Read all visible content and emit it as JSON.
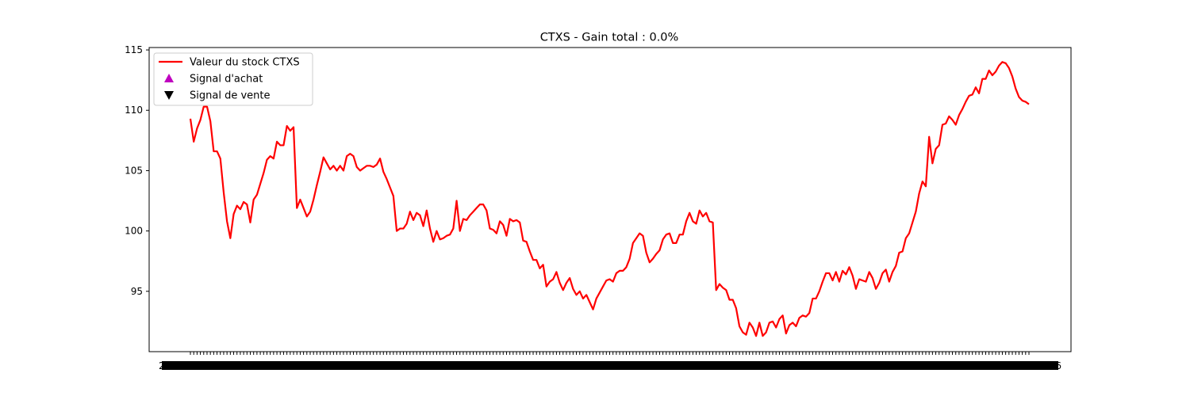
{
  "chart_data": {
    "type": "line",
    "title": "CTXS - Gain total : 0.0%",
    "xlabel": "",
    "ylabel": "",
    "ylim": [
      90.0,
      115.2
    ],
    "y_ticks": [
      95,
      100,
      105,
      110,
      115
    ],
    "x_tick_first": "2018",
    "x_tick_last": "2019-06",
    "grid": false,
    "legend_position": "upper-left",
    "series": [
      {
        "name": "Valeur du stock CTXS",
        "color": "#ff0000",
        "kind": "line",
        "values": [
          109.3,
          107.4,
          108.5,
          109.2,
          110.3,
          110.3,
          109.1,
          106.6,
          106.6,
          106.0,
          103.2,
          100.8,
          99.4,
          101.4,
          102.1,
          101.8,
          102.4,
          102.2,
          100.7,
          102.6,
          103.0,
          103.9,
          104.8,
          105.9,
          106.2,
          106.0,
          107.4,
          107.1,
          107.1,
          108.7,
          108.3,
          108.6,
          101.9,
          102.6,
          101.9,
          101.2,
          101.6,
          102.6,
          103.8,
          104.9,
          106.1,
          105.6,
          105.1,
          105.4,
          105.0,
          105.4,
          105.0,
          106.2,
          106.4,
          106.2,
          105.3,
          105.0,
          105.2,
          105.4,
          105.4,
          105.3,
          105.5,
          106.0,
          104.9,
          104.3,
          103.6,
          102.9,
          100.0,
          100.2,
          100.2,
          100.6,
          101.6,
          100.9,
          101.5,
          101.3,
          100.4,
          101.7,
          100.2,
          99.1,
          100.0,
          99.3,
          99.4,
          99.6,
          99.7,
          100.2,
          102.5,
          100.0,
          101.0,
          100.9,
          101.3,
          101.6,
          101.9,
          102.2,
          102.2,
          101.7,
          100.2,
          100.1,
          99.8,
          100.8,
          100.5,
          99.6,
          101.0,
          100.8,
          100.9,
          100.7,
          99.2,
          99.1,
          98.3,
          97.6,
          97.6,
          96.9,
          97.2,
          95.4,
          95.8,
          96.0,
          96.6,
          95.7,
          95.1,
          95.7,
          96.1,
          95.2,
          94.7,
          95.0,
          94.4,
          94.7,
          94.1,
          93.5,
          94.4,
          94.9,
          95.4,
          95.9,
          96.0,
          95.8,
          96.5,
          96.7,
          96.7,
          97.0,
          97.7,
          99.0,
          99.4,
          99.8,
          99.6,
          98.2,
          97.4,
          97.7,
          98.1,
          98.4,
          99.3,
          99.7,
          99.8,
          99.0,
          99.0,
          99.7,
          99.7,
          100.8,
          101.5,
          100.8,
          100.6,
          101.7,
          101.2,
          101.5,
          100.8,
          100.7,
          95.1,
          95.6,
          95.3,
          95.1,
          94.3,
          94.3,
          93.6,
          92.1,
          91.6,
          91.4,
          92.4,
          92.0,
          91.3,
          92.4,
          91.3,
          91.6,
          92.4,
          92.5,
          92.0,
          92.7,
          93.0,
          91.5,
          92.2,
          92.4,
          92.1,
          92.8,
          93.0,
          92.9,
          93.2,
          94.4,
          94.4,
          95.0,
          95.8,
          96.5,
          96.5,
          95.9,
          96.6,
          95.8,
          96.7,
          96.4,
          97.0,
          96.3,
          95.2,
          96.0,
          95.9,
          95.8,
          96.6,
          96.1,
          95.2,
          95.7,
          96.5,
          96.8,
          95.8,
          96.6,
          97.1,
          98.2,
          98.3,
          99.4,
          99.8,
          100.7,
          101.6,
          103.1,
          104.1,
          103.7,
          107.8,
          105.6,
          106.8,
          107.1,
          108.8,
          108.9,
          109.5,
          109.2,
          108.8,
          109.6,
          110.1,
          110.7,
          111.2,
          111.3,
          111.9,
          111.4,
          112.6,
          112.6,
          113.3,
          112.9,
          113.2,
          113.7,
          114.0,
          113.9,
          113.5,
          112.8,
          111.8,
          111.1,
          110.8,
          110.7,
          110.5
        ]
      },
      {
        "name": "Signal d'achat",
        "color": "#bf00bf",
        "kind": "marker-up",
        "values": []
      },
      {
        "name": "Signal de vente",
        "color": "#000000",
        "kind": "marker-down",
        "values": []
      }
    ]
  }
}
